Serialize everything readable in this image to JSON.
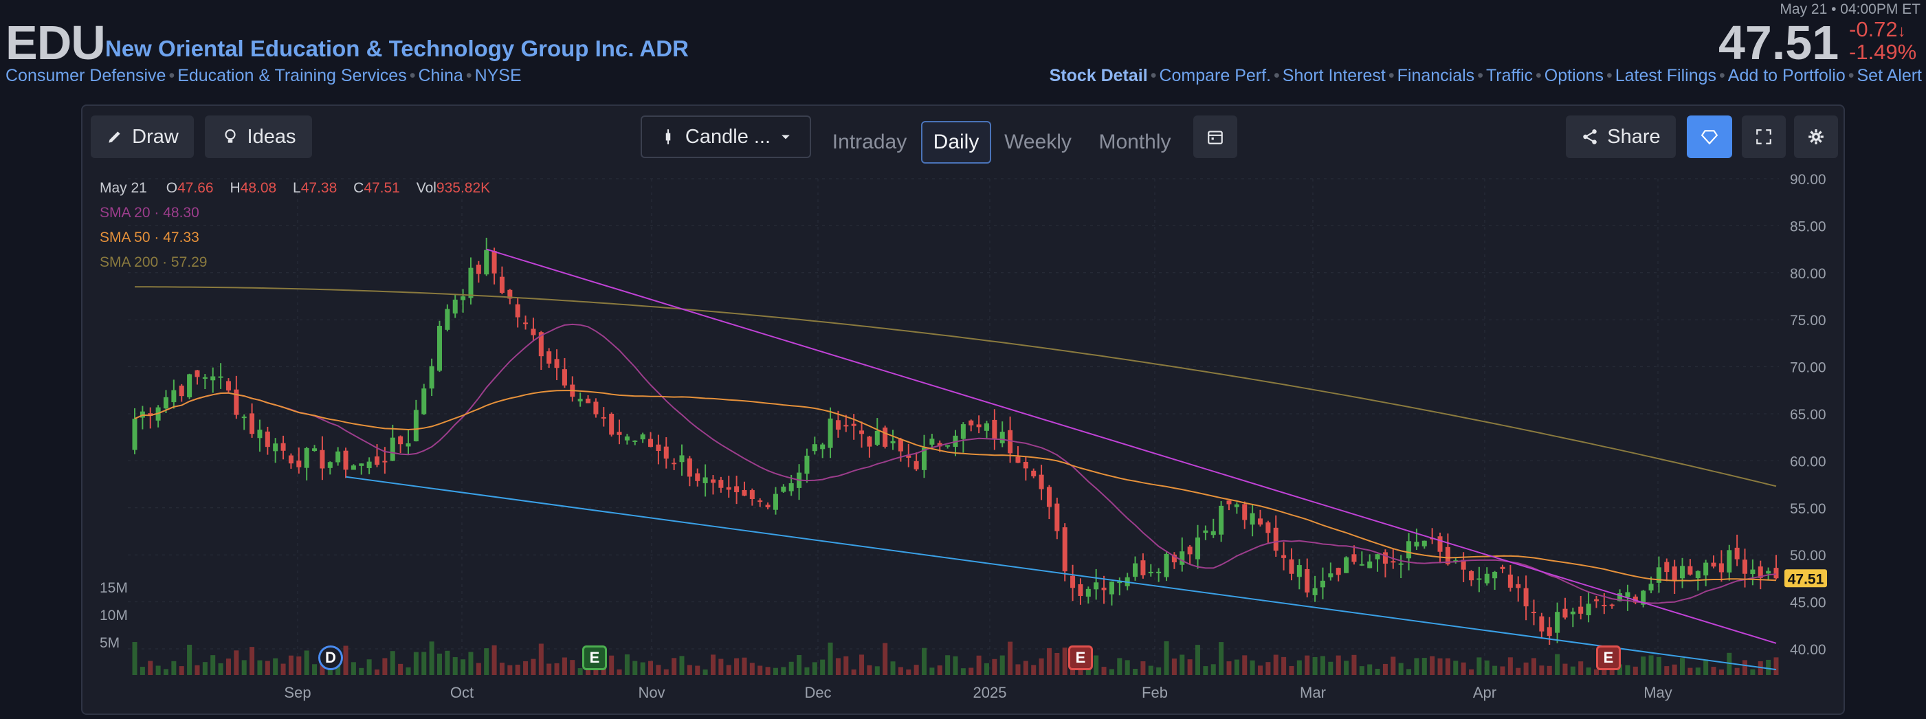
{
  "header": {
    "ticker": "EDU",
    "company": "New Oriental Education & Technology Group Inc. ADR",
    "meta": [
      "Consumer Defensive",
      "Education & Training Services",
      "China",
      "NYSE"
    ],
    "timestamp": "May 21 • 04:00PM ET",
    "price": "47.51",
    "change": "-0.72",
    "change_pct": "-1.49%",
    "change_arrow": "↓",
    "pct_suffix": "%"
  },
  "links": [
    "Stock Detail",
    "Compare Perf.",
    "Short Interest",
    "Financials",
    "Traffic",
    "Options",
    "Latest Filings",
    "Add to Portfolio",
    "Set Alert"
  ],
  "toolbar": {
    "draw": "Draw",
    "ideas": "Ideas",
    "chart_type": "Candle ...",
    "intervals": [
      "Intraday",
      "Daily",
      "Weekly",
      "Monthly"
    ],
    "active_interval": "Daily",
    "share": "Share"
  },
  "legend": {
    "date": "May 21",
    "o_label": "O",
    "o": "47.66",
    "h_label": "H",
    "h": "48.08",
    "l_label": "L",
    "l": "47.38",
    "c_label": "C",
    "c": "47.51",
    "vol_label": "Vol",
    "vol": "935.82K",
    "sma20_label": "SMA 20",
    "sma20": "48.30",
    "sma50_label": "SMA 50",
    "sma50": "47.33",
    "sma200_label": "SMA 200",
    "sma200": "57.29"
  },
  "colors": {
    "up": "#4caf50",
    "down": "#e0504d",
    "sma20": "#9c3d8c",
    "sma50": "#e6913a",
    "sma200": "#8a7a3e",
    "trend_upper": "#c042d6",
    "trend_lower": "#3aa0e6",
    "accent": "#4a8cf0",
    "price_tag": "#f5c542"
  },
  "chart_data": {
    "type": "candlestick",
    "x_ticks": [
      "Sep",
      "Oct",
      "Nov",
      "Dec",
      "2025",
      "Feb",
      "Mar",
      "Apr",
      "May"
    ],
    "y_ticks": [
      "90.00",
      "85.00",
      "80.00",
      "75.00",
      "70.00",
      "65.00",
      "60.00",
      "55.00",
      "50.00",
      "45.00",
      "40.00"
    ],
    "ylim": [
      37,
      91
    ],
    "volume_ticks": [
      "15M",
      "10M",
      "5M"
    ],
    "last_price_label": "47.51",
    "grid": true,
    "series_close_approx": [
      {
        "date": "Aug 1",
        "value": 64.5
      },
      {
        "date": "Aug 8",
        "value": 67.5
      },
      {
        "date": "Aug 15",
        "value": 69.5
      },
      {
        "date": "Aug 22",
        "value": 63.5
      },
      {
        "date": "Aug 29",
        "value": 60.5
      },
      {
        "date": "Sep 6",
        "value": 60.0
      },
      {
        "date": "Sep 13",
        "value": 59.5
      },
      {
        "date": "Sep 20",
        "value": 62.5
      },
      {
        "date": "Sep 26",
        "value": 76.5
      },
      {
        "date": "Oct 3",
        "value": 81.5
      },
      {
        "date": "Oct 10",
        "value": 74.0
      },
      {
        "date": "Oct 17",
        "value": 69.0
      },
      {
        "date": "Oct 24",
        "value": 63.5
      },
      {
        "date": "Oct 31",
        "value": 62.0
      },
      {
        "date": "Nov 7",
        "value": 60.0
      },
      {
        "date": "Nov 14",
        "value": 56.0
      },
      {
        "date": "Nov 21",
        "value": 55.5
      },
      {
        "date": "Nov 28",
        "value": 59.0
      },
      {
        "date": "Dec 5",
        "value": 64.5
      },
      {
        "date": "Dec 12",
        "value": 62.0
      },
      {
        "date": "Dec 19",
        "value": 60.0
      },
      {
        "date": "Dec 26",
        "value": 63.5
      },
      {
        "date": "Jan 3",
        "value": 63.0
      },
      {
        "date": "Jan 10",
        "value": 59.5
      },
      {
        "date": "Jan 17",
        "value": 46.5
      },
      {
        "date": "Jan 24",
        "value": 47.5
      },
      {
        "date": "Jan 31",
        "value": 49.0
      },
      {
        "date": "Feb 7",
        "value": 51.0
      },
      {
        "date": "Feb 14",
        "value": 55.5
      },
      {
        "date": "Feb 21",
        "value": 52.0
      },
      {
        "date": "Feb 28",
        "value": 47.0
      },
      {
        "date": "Mar 7",
        "value": 49.5
      },
      {
        "date": "Mar 14",
        "value": 49.0
      },
      {
        "date": "Mar 21",
        "value": 51.5
      },
      {
        "date": "Mar 28",
        "value": 47.5
      },
      {
        "date": "Apr 4",
        "value": 47.5
      },
      {
        "date": "Apr 11",
        "value": 42.0
      },
      {
        "date": "Apr 18",
        "value": 44.0
      },
      {
        "date": "Apr 25",
        "value": 45.0
      },
      {
        "date": "May 2",
        "value": 47.5
      },
      {
        "date": "May 9",
        "value": 49.0
      },
      {
        "date": "May 16",
        "value": 49.5
      },
      {
        "date": "May 21",
        "value": 47.51
      }
    ],
    "event_markers": [
      {
        "label": "D",
        "date": "Sep 11",
        "kind": "dividend"
      },
      {
        "label": "E",
        "date": "Oct 23",
        "kind": "earnings-positive"
      },
      {
        "label": "E",
        "date": "Jan 16",
        "kind": "earnings-negative"
      },
      {
        "label": "E",
        "date": "Apr 23",
        "kind": "earnings-negative"
      }
    ]
  }
}
